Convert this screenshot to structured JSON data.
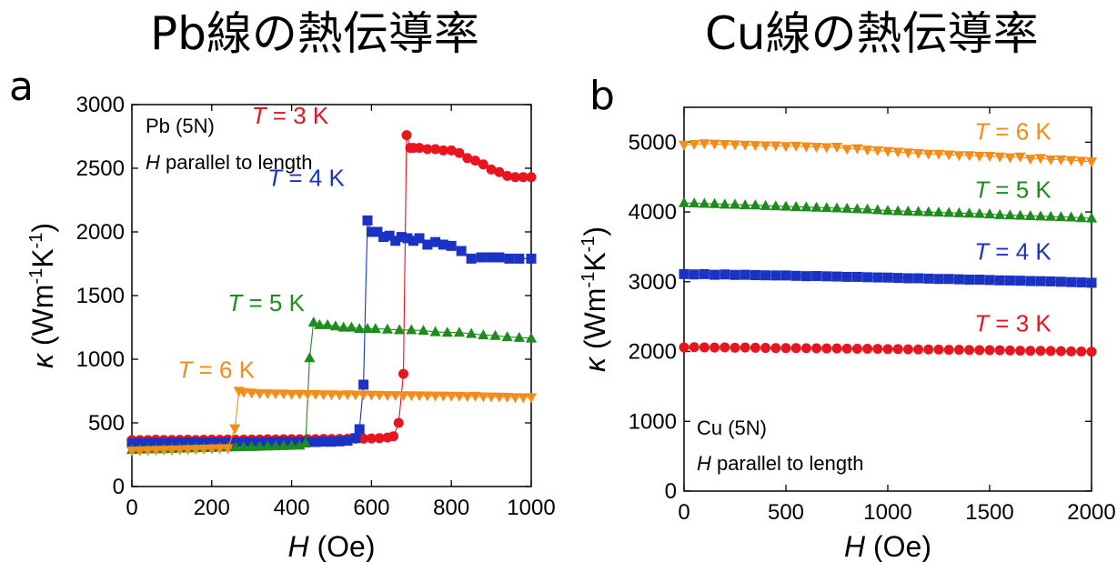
{
  "titles": {
    "a": "Pb線の熱伝導率",
    "b": "Cu線の熱伝導率"
  },
  "panel_labels": {
    "a": "a",
    "b": "b"
  },
  "chart_data": [
    {
      "type": "line",
      "panel": "a",
      "xlabel": {
        "var": "H",
        "unit": " (Oe)"
      },
      "ylabel": {
        "var": "κ",
        "unit": " (Wm",
        "sup1": "-1",
        "mid": "K",
        "sup2": "-1",
        "tail": ")"
      },
      "xlim": [
        0,
        1000
      ],
      "ylim": [
        0,
        3000
      ],
      "xticks": [
        0,
        200,
        400,
        600,
        800,
        1000
      ],
      "yticks": [
        0,
        500,
        1000,
        1500,
        2000,
        2500,
        3000
      ],
      "annotations": [
        {
          "text": "Pb (5N)",
          "italic_prefix": ""
        },
        {
          "text": " parallel to length",
          "italic_prefix": "H"
        }
      ],
      "series": [
        {
          "name": "T = 3 K",
          "var": "T",
          "rest": " = 3 K",
          "color": "#e8141e",
          "marker": "circle",
          "label_at": [
            300,
            2850
          ],
          "x": [
            0,
            20,
            40,
            60,
            80,
            100,
            120,
            140,
            160,
            180,
            200,
            220,
            240,
            260,
            280,
            300,
            320,
            340,
            360,
            380,
            400,
            420,
            440,
            460,
            480,
            500,
            520,
            540,
            560,
            580,
            600,
            620,
            640,
            655,
            668,
            680,
            688,
            697,
            705,
            720,
            740,
            760,
            780,
            800,
            820,
            840,
            860,
            880,
            900,
            920,
            940,
            960,
            980,
            1000
          ],
          "y": [
            365,
            365,
            365,
            368,
            366,
            366,
            367,
            368,
            366,
            368,
            369,
            368,
            370,
            368,
            369,
            370,
            370,
            371,
            370,
            371,
            372,
            371,
            372,
            372,
            374,
            373,
            374,
            375,
            376,
            376,
            378,
            380,
            385,
            395,
            500,
            885,
            2760,
            2660,
            2660,
            2660,
            2650,
            2650,
            2640,
            2640,
            2620,
            2580,
            2560,
            2530,
            2490,
            2470,
            2440,
            2430,
            2430,
            2430
          ]
        },
        {
          "name": "T = 4 K",
          "var": "T",
          "rest": " = 4 K",
          "color": "#1a33c4",
          "marker": "square",
          "label_at": [
            340,
            2360
          ],
          "x": [
            0,
            20,
            40,
            60,
            80,
            100,
            120,
            140,
            160,
            180,
            200,
            220,
            240,
            260,
            280,
            300,
            320,
            340,
            360,
            380,
            400,
            420,
            440,
            460,
            480,
            500,
            520,
            540,
            560,
            570,
            580,
            590,
            600,
            615,
            630,
            645,
            660,
            675,
            690,
            705,
            720,
            740,
            760,
            780,
            800,
            825,
            850,
            875,
            900,
            920,
            945,
            970,
            1000
          ],
          "y": [
            340,
            342,
            342,
            343,
            341,
            343,
            344,
            343,
            345,
            344,
            345,
            344,
            346,
            345,
            346,
            347,
            346,
            348,
            347,
            349,
            348,
            349,
            350,
            350,
            352,
            352,
            355,
            360,
            380,
            450,
            800,
            2090,
            2000,
            2000,
            1960,
            1970,
            1930,
            1960,
            1950,
            1930,
            1950,
            1900,
            1920,
            1900,
            1890,
            1850,
            1790,
            1800,
            1800,
            1800,
            1790,
            1790,
            1790
          ]
        },
        {
          "name": "T = 5 K",
          "var": "T",
          "rest": " = 5 K",
          "color": "#1d8c1d",
          "marker": "triangle-up",
          "label_at": [
            240,
            1380
          ],
          "x": [
            0,
            20,
            40,
            60,
            80,
            100,
            120,
            140,
            160,
            180,
            200,
            220,
            240,
            260,
            280,
            300,
            320,
            340,
            360,
            380,
            400,
            420,
            435,
            445,
            455,
            470,
            490,
            510,
            530,
            550,
            570,
            590,
            610,
            640,
            670,
            700,
            730,
            760,
            790,
            820,
            850,
            880,
            910,
            940,
            970,
            1000
          ],
          "y": [
            290,
            292,
            294,
            295,
            296,
            298,
            300,
            302,
            303,
            305,
            306,
            308,
            309,
            310,
            312,
            313,
            315,
            316,
            318,
            320,
            322,
            324,
            340,
            1010,
            1290,
            1270,
            1270,
            1260,
            1250,
            1250,
            1240,
            1240,
            1240,
            1235,
            1230,
            1230,
            1225,
            1215,
            1210,
            1210,
            1200,
            1190,
            1185,
            1175,
            1170,
            1165
          ]
        },
        {
          "name": "T = 6 K",
          "var": "T",
          "rest": " = 6 K",
          "color": "#f58c1a",
          "marker": "triangle-down",
          "label_at": [
            115,
            855
          ],
          "x": [
            0,
            20,
            40,
            60,
            80,
            100,
            120,
            140,
            160,
            180,
            200,
            220,
            240,
            258,
            268,
            280,
            300,
            320,
            340,
            360,
            380,
            400,
            420,
            440,
            460,
            480,
            500,
            520,
            540,
            560,
            580,
            600,
            620,
            640,
            660,
            680,
            700,
            720,
            740,
            760,
            780,
            800,
            820,
            840,
            860,
            880,
            900,
            920,
            940,
            960,
            980,
            1000
          ],
          "y": [
            280,
            282,
            284,
            285,
            287,
            288,
            290,
            292,
            293,
            295,
            297,
            299,
            300,
            455,
            750,
            740,
            735,
            730,
            730,
            728,
            728,
            725,
            726,
            724,
            725,
            722,
            722,
            720,
            722,
            720,
            720,
            718,
            718,
            716,
            716,
            715,
            715,
            714,
            713,
            712,
            712,
            710,
            710,
            708,
            710,
            706,
            705,
            704,
            702,
            700,
            700,
            700
          ]
        }
      ]
    },
    {
      "type": "line",
      "panel": "b",
      "xlabel": {
        "var": "H",
        "unit": " (Oe)"
      },
      "ylabel": {
        "var": "κ",
        "unit": " (Wm",
        "sup1": "-1",
        "mid": "K",
        "sup2": "-1",
        "tail": ")"
      },
      "xlim": [
        0,
        2000
      ],
      "ylim": [
        0,
        5500
      ],
      "xticks": [
        0,
        500,
        1000,
        1500,
        2000
      ],
      "yticks": [
        0,
        1000,
        2000,
        3000,
        4000,
        5000
      ],
      "annotations": [
        {
          "text": "Cu (5N)",
          "italic_prefix": ""
        },
        {
          "text": " parallel to length",
          "italic_prefix": "H"
        }
      ],
      "series": [
        {
          "name": "T = 6 K",
          "var": "T",
          "rest": " = 6 K",
          "color": "#f58c1a",
          "marker": "triangle-down",
          "label_at": [
            1425,
            5040
          ],
          "x": [
            0,
            50,
            100,
            150,
            200,
            250,
            300,
            350,
            400,
            450,
            500,
            550,
            600,
            650,
            700,
            750,
            800,
            850,
            900,
            950,
            1000,
            1050,
            1100,
            1150,
            1200,
            1250,
            1300,
            1350,
            1400,
            1450,
            1500,
            1550,
            1600,
            1650,
            1700,
            1750,
            1800,
            1850,
            1900,
            1950,
            2000
          ],
          "y": [
            4960,
            4970,
            4980,
            4975,
            4970,
            4965,
            4960,
            4955,
            4950,
            4950,
            4940,
            4945,
            4935,
            4930,
            4925,
            4930,
            4900,
            4910,
            4890,
            4880,
            4870,
            4860,
            4850,
            4840,
            4830,
            4830,
            4820,
            4810,
            4810,
            4800,
            4800,
            4790,
            4780,
            4790,
            4760,
            4770,
            4750,
            4750,
            4740,
            4730,
            4720
          ]
        },
        {
          "name": "T = 5 K",
          "var": "T",
          "rest": " = 5 K",
          "color": "#1d8c1d",
          "marker": "triangle-up",
          "label_at": [
            1425,
            4200
          ],
          "x": [
            0,
            50,
            100,
            150,
            200,
            250,
            300,
            350,
            400,
            450,
            500,
            550,
            600,
            650,
            700,
            750,
            800,
            850,
            900,
            950,
            1000,
            1050,
            1100,
            1150,
            1200,
            1250,
            1300,
            1350,
            1400,
            1450,
            1500,
            1550,
            1600,
            1650,
            1700,
            1750,
            1800,
            1850,
            1900,
            1950,
            2000
          ],
          "y": [
            4130,
            4125,
            4120,
            4118,
            4110,
            4108,
            4100,
            4098,
            4090,
            4085,
            4080,
            4075,
            4070,
            4065,
            4060,
            4055,
            4050,
            4045,
            4040,
            4030,
            4020,
            4015,
            4010,
            4005,
            4000,
            3995,
            3990,
            3985,
            3980,
            3975,
            3970,
            3960,
            3955,
            3950,
            3945,
            3940,
            3935,
            3930,
            3925,
            3915,
            3910
          ]
        },
        {
          "name": "T = 4 K",
          "var": "T",
          "rest": " = 4 K",
          "color": "#1a33c4",
          "marker": "square",
          "label_at": [
            1425,
            3320
          ],
          "x": [
            0,
            50,
            100,
            150,
            200,
            250,
            300,
            350,
            400,
            450,
            500,
            550,
            600,
            650,
            700,
            750,
            800,
            850,
            900,
            950,
            1000,
            1050,
            1100,
            1150,
            1200,
            1250,
            1300,
            1350,
            1400,
            1450,
            1500,
            1550,
            1600,
            1650,
            1700,
            1750,
            1800,
            1850,
            1900,
            1950,
            2000
          ],
          "y": [
            3110,
            3105,
            3110,
            3100,
            3105,
            3098,
            3100,
            3095,
            3092,
            3090,
            3090,
            3085,
            3080,
            3082,
            3078,
            3075,
            3070,
            3070,
            3065,
            3062,
            3060,
            3055,
            3050,
            3050,
            3045,
            3040,
            3040,
            3035,
            3030,
            3030,
            3025,
            3020,
            3018,
            3015,
            3010,
            3008,
            3005,
            3000,
            2995,
            2990,
            2985
          ]
        },
        {
          "name": "T = 3 K",
          "var": "T",
          "rest": " = 3 K",
          "color": "#e8141e",
          "marker": "circle",
          "label_at": [
            1425,
            2290
          ],
          "x": [
            0,
            50,
            100,
            150,
            200,
            250,
            300,
            350,
            400,
            450,
            500,
            550,
            600,
            650,
            700,
            750,
            800,
            850,
            900,
            950,
            1000,
            1050,
            1100,
            1150,
            1200,
            1250,
            1300,
            1350,
            1400,
            1450,
            1500,
            1550,
            1600,
            1650,
            1700,
            1750,
            1800,
            1850,
            1900,
            1950,
            2000
          ],
          "y": [
            2060,
            2062,
            2060,
            2058,
            2060,
            2055,
            2058,
            2055,
            2052,
            2050,
            2050,
            2050,
            2048,
            2046,
            2045,
            2045,
            2042,
            2040,
            2040,
            2038,
            2035,
            2035,
            2032,
            2030,
            2030,
            2028,
            2025,
            2025,
            2022,
            2020,
            2020,
            2018,
            2015,
            2012,
            2010,
            2010,
            2008,
            2005,
            2002,
            2000,
            1998
          ]
        }
      ]
    }
  ]
}
